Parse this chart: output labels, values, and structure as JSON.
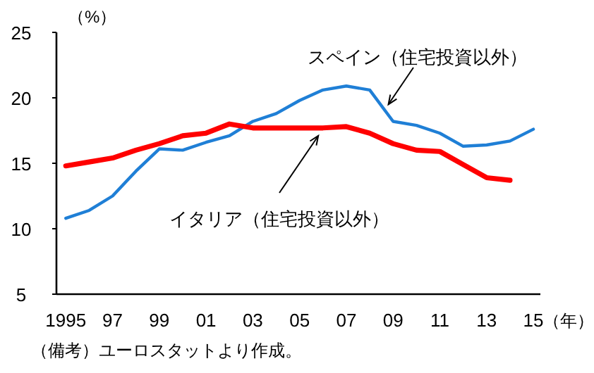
{
  "chart_data": {
    "type": "line",
    "ylabel": "（%）",
    "xlabel": "（年）",
    "x": [
      1995,
      1996,
      1997,
      1998,
      1999,
      2000,
      2001,
      2002,
      2003,
      2004,
      2005,
      2006,
      2007,
      2008,
      2009,
      2010,
      2011,
      2012,
      2013,
      2014,
      2015
    ],
    "series": [
      {
        "color": "#1f7fd6",
        "values": [
          10.8,
          11.4,
          12.5,
          14.4,
          16.1,
          16.0,
          16.6,
          17.1,
          18.2,
          18.8,
          19.8,
          20.6,
          20.9,
          20.6,
          18.2,
          17.9,
          17.3,
          16.3,
          16.4,
          16.7,
          17.6
        ]
      },
      {
        "color": "#ff0000",
        "values": [
          14.8,
          15.1,
          15.4,
          16.0,
          16.5,
          17.1,
          17.3,
          18.0,
          17.7,
          17.7,
          17.7,
          17.7,
          17.8,
          17.3,
          16.5,
          16.0,
          15.9,
          14.9,
          13.9,
          13.7,
          null
        ]
      }
    ],
    "xlim": [
      1994.6,
      2015.3
    ],
    "xticks": [
      {
        "value": 1995,
        "label": "1995"
      },
      {
        "value": 1997,
        "label": "97"
      },
      {
        "value": 1999,
        "label": "99"
      },
      {
        "value": 2001,
        "label": "01"
      },
      {
        "value": 2003,
        "label": "03"
      },
      {
        "value": 2005,
        "label": "05"
      },
      {
        "value": 2007,
        "label": "07"
      },
      {
        "value": 2009,
        "label": "09"
      },
      {
        "value": 2011,
        "label": "11"
      },
      {
        "value": 2013,
        "label": "13"
      },
      {
        "value": 2015,
        "label": "15"
      }
    ],
    "ylim": [
      5,
      25
    ],
    "yticks": [
      5,
      10,
      15,
      20,
      25
    ],
    "grid": false,
    "marker": "none",
    "line_style": "solid",
    "annotations": [
      {
        "text": "スペイン（住宅投資以外）",
        "x": 2008.8,
        "y": 19.5
      },
      {
        "text": "イタリア（住宅投資以外）",
        "x": 2005.8,
        "y": 17.1
      },
      "（備考）ユーロスタットより作成。"
    ]
  }
}
